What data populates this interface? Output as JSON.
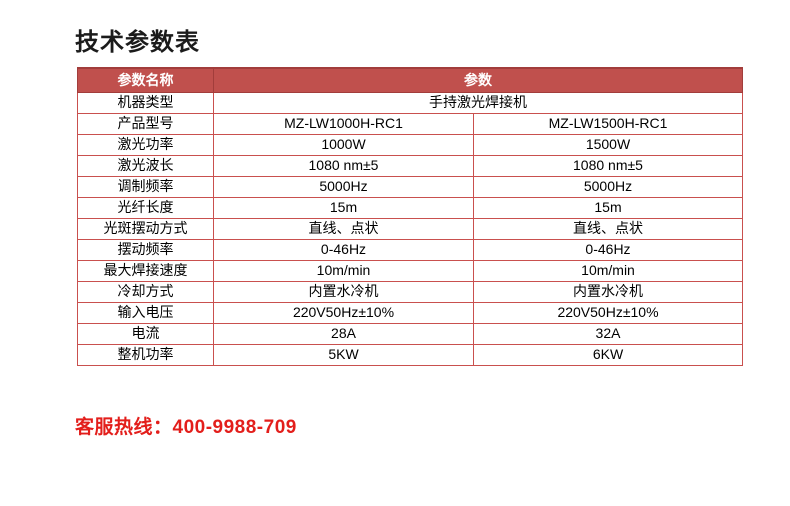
{
  "page": {
    "title": "技术参数表",
    "hotline": "客服热线：400-9988-709"
  },
  "colors": {
    "accent": "#c0504d",
    "accent_dark": "#a23d3b",
    "grid_border": "#c9504e",
    "hotline_text": "#e31e1b",
    "title_text": "#1b1b1b",
    "header_text": "#ffffff",
    "body_text": "#000000"
  },
  "table": {
    "headers": [
      "参数名称",
      "参数"
    ],
    "rows": [
      {
        "name": "机器类型",
        "values": [
          "手持激光焊接机"
        ]
      },
      {
        "name": "产品型号",
        "values": [
          "MZ-LW1000H-RC1",
          "MZ-LW1500H-RC1"
        ]
      },
      {
        "name": "激光功率",
        "values": [
          "1000W",
          "1500W"
        ]
      },
      {
        "name": "激光波长",
        "values": [
          "1080 nm±5",
          "1080 nm±5"
        ]
      },
      {
        "name": "调制频率",
        "values": [
          "5000Hz",
          "5000Hz"
        ]
      },
      {
        "name": "光纤长度",
        "values": [
          "15m",
          "15m"
        ]
      },
      {
        "name": "光斑摆动方式",
        "values": [
          "直线、点状",
          "直线、点状"
        ]
      },
      {
        "name": "摆动频率",
        "values": [
          "0-46Hz",
          "0-46Hz"
        ]
      },
      {
        "name": "最大焊接速度",
        "values": [
          "10m/min",
          "10m/min"
        ]
      },
      {
        "name": "冷却方式",
        "values": [
          "内置水冷机",
          "内置水冷机"
        ]
      },
      {
        "name": "输入电压",
        "values": [
          "220V50Hz±10%",
          "220V50Hz±10%"
        ]
      },
      {
        "name": "电流",
        "values": [
          "28A",
          "32A"
        ]
      },
      {
        "name": "整机功率",
        "values": [
          "5KW",
          "6KW"
        ]
      }
    ]
  }
}
